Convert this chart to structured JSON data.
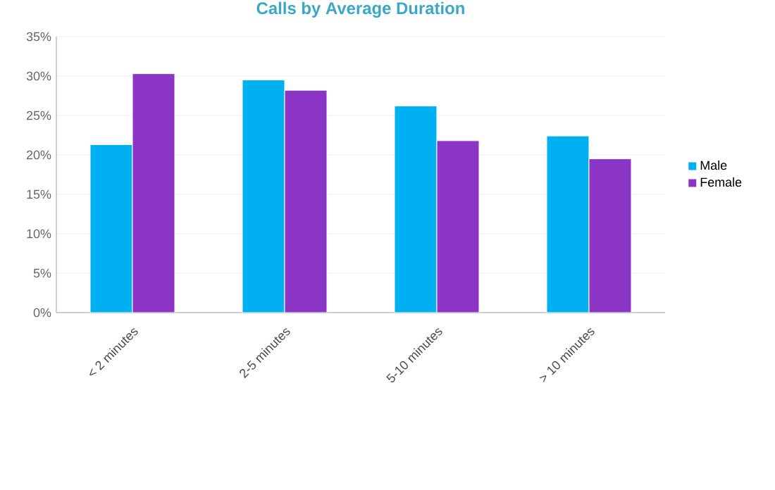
{
  "chart_data": {
    "type": "bar",
    "title": "Calls by Average Duration",
    "categories": [
      "< 2 minutes",
      "2-5 minutes",
      "5-10 minutes",
      "> 10 minutes"
    ],
    "series": [
      {
        "name": "Male",
        "color": "#00b0f0",
        "values": [
          21.3,
          29.5,
          26.2,
          22.4
        ]
      },
      {
        "name": "Female",
        "color": "#8b35c4",
        "values": [
          30.3,
          28.2,
          21.8,
          19.5
        ]
      }
    ],
    "ylim": [
      0,
      35
    ],
    "yticks": [
      {
        "value": 0,
        "label": "0%"
      },
      {
        "value": 5,
        "label": "5%"
      },
      {
        "value": 10,
        "label": "10%"
      },
      {
        "value": 15,
        "label": "15%"
      },
      {
        "value": 20,
        "label": "20%"
      },
      {
        "value": 25,
        "label": "25%"
      },
      {
        "value": 30,
        "label": "30%"
      },
      {
        "value": 35,
        "label": "35%"
      }
    ],
    "grid": "y",
    "legend": "right"
  }
}
